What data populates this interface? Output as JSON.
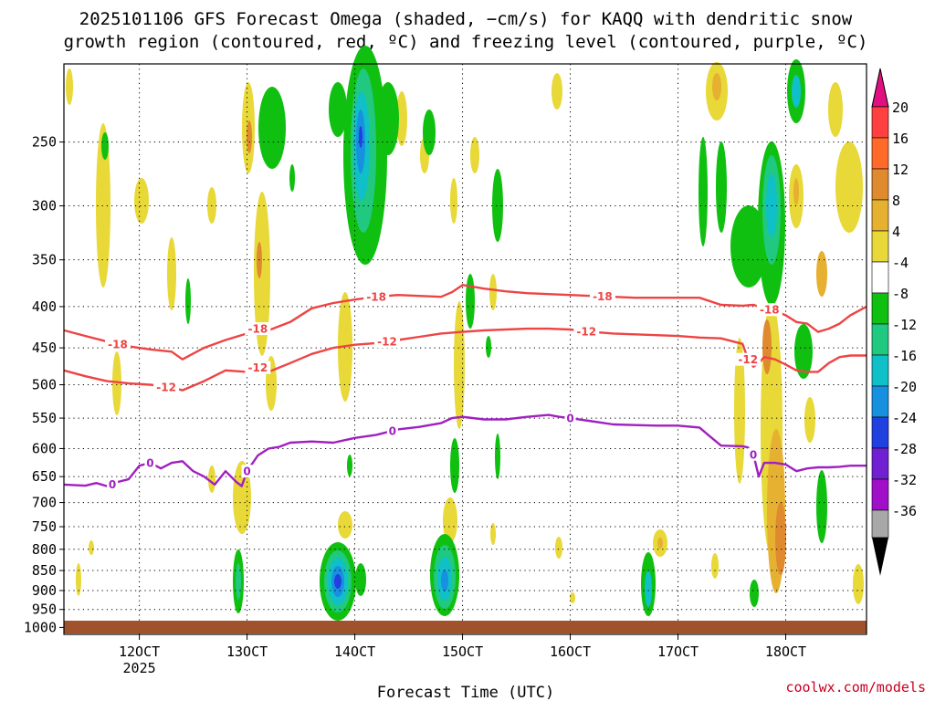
{
  "chart_data": {
    "type": "time-height-contour",
    "title_line1": "2025101106 GFS Forecast Omega (shaded, −cm/s) for KAQQ with dendritic snow",
    "title_line2": "growth region (contoured, red, ºC) and freezing level (contoured, purple, ºC)",
    "xlabel": "Forecast Time (UTC)",
    "credit": "coolwx.com/models",
    "x_range_hours": [
      -8,
      141
    ],
    "y_range_hpa": [
      200,
      1020
    ],
    "x_ticks": [
      {
        "label": "12OCT",
        "hour": 6,
        "sub": "2025"
      },
      {
        "label": "13OCT",
        "hour": 26
      },
      {
        "label": "14OCT",
        "hour": 46
      },
      {
        "label": "15OCT",
        "hour": 66
      },
      {
        "label": "16OCT",
        "hour": 86
      },
      {
        "label": "17OCT",
        "hour": 106
      },
      {
        "label": "18OCT",
        "hour": 126
      }
    ],
    "y_ticks": [
      250,
      300,
      350,
      400,
      450,
      500,
      550,
      600,
      650,
      700,
      750,
      800,
      850,
      900,
      950,
      1000
    ],
    "colorbar": {
      "labels": [
        20,
        16,
        12,
        8,
        4,
        -4,
        -8,
        -12,
        -16,
        -20,
        -24,
        -28,
        -32,
        -36
      ],
      "colors": [
        "#ff4040",
        "#ff6a2a",
        "#e08a30",
        "#e6b030",
        "#e8d838",
        "#ffffff",
        "#10c010",
        "#20c880",
        "#10c0c8",
        "#1890e0",
        "#2040e0",
        "#7020d0",
        "#a010c8",
        "#a8a8a8"
      ],
      "top_arrow_color": "#e01080",
      "bottom_arrow_color": "#000000"
    },
    "series": [
      {
        "name": "-18",
        "color": "#ee4444",
        "x": [
          -8,
          -4,
          0,
          4,
          8,
          12,
          14,
          18,
          22,
          26,
          28,
          30,
          34,
          38,
          42,
          46,
          50,
          54,
          58,
          62,
          64,
          66,
          70,
          74,
          78,
          82,
          86,
          90,
          94,
          98,
          102,
          106,
          110,
          114,
          118,
          120,
          122,
          124,
          126,
          128,
          130,
          132,
          134,
          136,
          138,
          141
        ],
        "y": [
          428,
          435,
          442,
          448,
          452,
          455,
          465,
          450,
          440,
          432,
          426,
          428,
          418,
          402,
          396,
          392,
          389,
          387,
          388,
          389,
          384,
          376,
          380,
          383,
          385,
          386,
          387,
          388,
          389,
          390,
          390,
          390,
          390,
          398,
          399,
          398,
          402,
          405,
          410,
          418,
          420,
          430,
          426,
          420,
          410,
          400
        ]
      },
      {
        "name": "-12",
        "color": "#ee4444",
        "x": [
          -8,
          -4,
          0,
          4,
          8,
          12,
          14,
          18,
          22,
          26,
          28,
          30,
          34,
          38,
          42,
          46,
          50,
          54,
          58,
          62,
          66,
          70,
          74,
          78,
          82,
          86,
          90,
          94,
          98,
          102,
          106,
          110,
          114,
          118,
          119,
          120,
          121,
          122,
          124,
          126,
          128,
          130,
          132,
          134,
          136,
          138,
          141
        ],
        "y": [
          480,
          488,
          495,
          498,
          500,
          504,
          508,
          495,
          480,
          482,
          476,
          482,
          470,
          458,
          450,
          446,
          444,
          440,
          436,
          432,
          430,
          428,
          427,
          426,
          426,
          427,
          430,
          432,
          433,
          434,
          435,
          437,
          438,
          445,
          465,
          475,
          470,
          462,
          465,
          472,
          480,
          482,
          482,
          470,
          462,
          460,
          460
        ]
      },
      {
        "name": "0",
        "color": "#a020c0",
        "x": [
          -8,
          -4,
          -2,
          0,
          2,
          4,
          6,
          8,
          10,
          12,
          14,
          16,
          18,
          20,
          22,
          24,
          25,
          26,
          28,
          30,
          32,
          34,
          38,
          42,
          46,
          50,
          54,
          58,
          62,
          64,
          66,
          70,
          74,
          78,
          82,
          84,
          86,
          90,
          94,
          98,
          102,
          106,
          110,
          112,
          114,
          118,
          119,
          120,
          121,
          122,
          124,
          126,
          128,
          130,
          132,
          134,
          136,
          138,
          141
        ],
        "y": [
          665,
          667,
          662,
          668,
          660,
          655,
          630,
          625,
          635,
          625,
          622,
          640,
          650,
          665,
          640,
          660,
          668,
          640,
          612,
          600,
          597,
          590,
          588,
          590,
          582,
          577,
          568,
          564,
          558,
          550,
          548,
          552,
          552,
          548,
          545,
          548,
          550,
          555,
          560,
          561,
          562,
          562,
          565,
          580,
          595,
          596,
          598,
          610,
          650,
          625,
          625,
          628,
          640,
          635,
          633,
          633,
          632,
          630,
          630
        ]
      }
    ]
  }
}
